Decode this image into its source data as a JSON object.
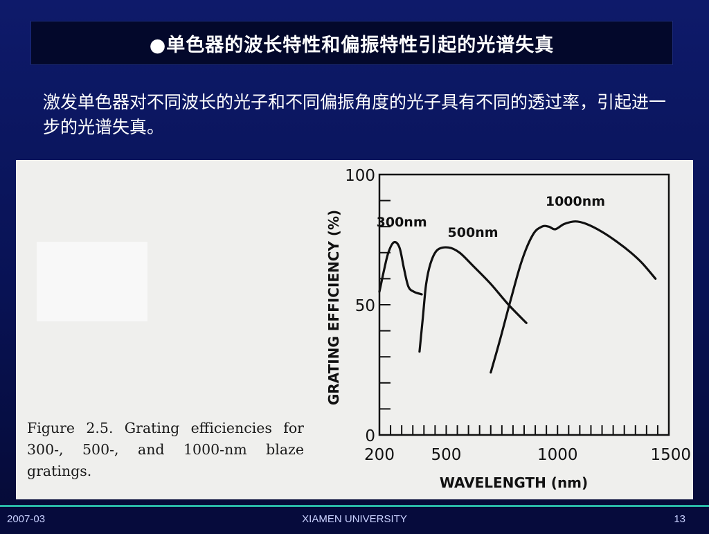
{
  "slide": {
    "title": "●单色器的波长特性和偏振特性引起的光谱失真",
    "intro": "激发单色器对不同波长的光子和不同偏振角度的光子具有不同的透过率，引起进一步的光谱失真。",
    "caption": "Figure 2.5. Grating efficiencies for 300-, 500-, and 1000-nm blaze gratings."
  },
  "footer": {
    "date": "2007-03",
    "org": "XIAMEN UNIVERSITY",
    "page": "13"
  },
  "chart_data": {
    "type": "line",
    "xlabel": "WAVELENGTH (nm)",
    "ylabel": "GRATING EFFICIENCY (%)",
    "xlim": [
      200,
      1500
    ],
    "ylim": [
      0,
      100
    ],
    "x_ticks": [
      200,
      500,
      1000,
      1500
    ],
    "y_ticks": [
      0,
      50,
      100
    ],
    "series": [
      {
        "name": "300nm",
        "points": [
          [
            200,
            55
          ],
          [
            220,
            63
          ],
          [
            240,
            70
          ],
          [
            265,
            74
          ],
          [
            290,
            72
          ],
          [
            310,
            64
          ],
          [
            330,
            57
          ],
          [
            355,
            55
          ],
          [
            390,
            54
          ]
        ]
      },
      {
        "name": "500nm",
        "points": [
          [
            380,
            32
          ],
          [
            395,
            45
          ],
          [
            410,
            58
          ],
          [
            430,
            66
          ],
          [
            460,
            71
          ],
          [
            510,
            72
          ],
          [
            560,
            70
          ],
          [
            620,
            65
          ],
          [
            700,
            58
          ],
          [
            780,
            50
          ],
          [
            860,
            43
          ]
        ]
      },
      {
        "name": "1000nm",
        "points": [
          [
            700,
            24
          ],
          [
            740,
            36
          ],
          [
            790,
            52
          ],
          [
            840,
            67
          ],
          [
            890,
            77
          ],
          [
            930,
            80
          ],
          [
            960,
            80
          ],
          [
            990,
            79
          ],
          [
            1030,
            81
          ],
          [
            1080,
            82
          ],
          [
            1130,
            81
          ],
          [
            1200,
            78
          ],
          [
            1270,
            74
          ],
          [
            1330,
            70
          ],
          [
            1380,
            66
          ],
          [
            1440,
            60
          ]
        ]
      }
    ],
    "grid": false
  }
}
